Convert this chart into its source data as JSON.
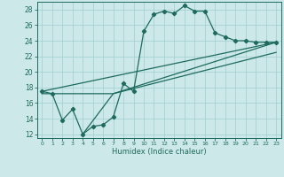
{
  "xlabel": "Humidex (Indice chaleur)",
  "bg_color": "#cce8e8",
  "grid_color": "#9fcece",
  "line_color": "#1e6b5e",
  "xlim": [
    -0.5,
    23.5
  ],
  "ylim": [
    11.5,
    29.0
  ],
  "yticks": [
    12,
    14,
    16,
    18,
    20,
    22,
    24,
    26,
    28
  ],
  "xticks": [
    0,
    1,
    2,
    3,
    4,
    5,
    6,
    7,
    8,
    9,
    10,
    11,
    12,
    13,
    14,
    15,
    16,
    17,
    18,
    19,
    20,
    21,
    22,
    23
  ],
  "main_line": {
    "x": [
      0,
      1,
      2,
      3,
      4,
      5,
      6,
      7,
      8,
      9,
      10,
      11,
      12,
      13,
      14,
      15,
      16,
      17,
      18,
      19,
      20,
      21,
      22,
      23
    ],
    "y": [
      17.5,
      17.2,
      13.8,
      15.2,
      12.0,
      13.0,
      13.2,
      14.2,
      18.5,
      17.5,
      25.2,
      27.4,
      27.8,
      27.5,
      28.5,
      27.8,
      27.8,
      25.0,
      24.5,
      24.0,
      24.0,
      23.8,
      23.8,
      23.8
    ]
  },
  "straight_lines": [
    {
      "x": [
        0,
        23
      ],
      "y": [
        17.5,
        23.8
      ]
    },
    {
      "x": [
        0,
        7,
        23
      ],
      "y": [
        17.2,
        17.2,
        22.5
      ]
    },
    {
      "x": [
        4,
        7,
        23
      ],
      "y": [
        12.0,
        17.2,
        23.8
      ]
    }
  ]
}
